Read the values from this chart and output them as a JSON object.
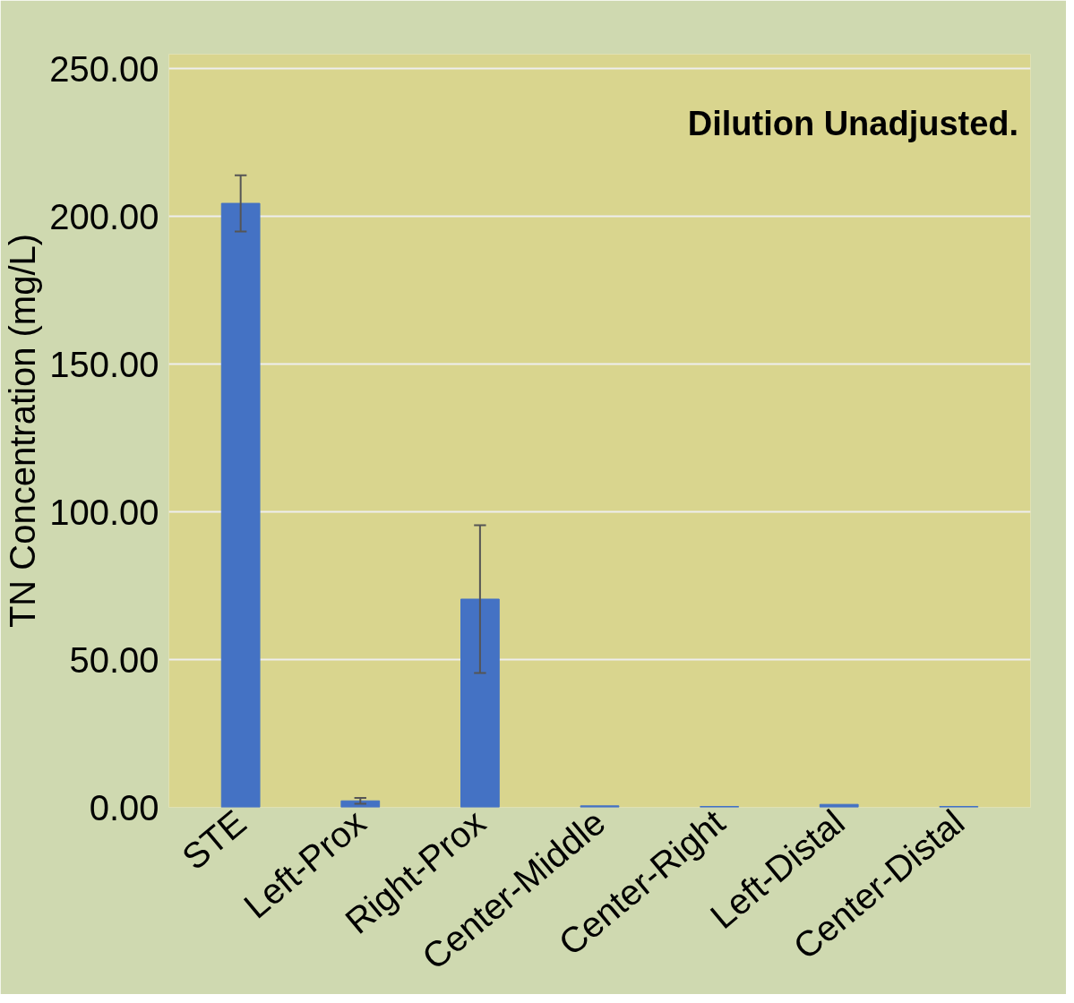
{
  "chart_data": {
    "type": "bar",
    "ylabel": "TN Concentration (mg/L)",
    "annotations": [
      "Dilution Unadjusted."
    ],
    "categories": [
      "STE",
      "Left-Prox",
      "Right-Prox",
      "Center-Middle",
      "Center-Right",
      "Left-Distal",
      "Center-Distal"
    ],
    "values": [
      204.5,
      2.2,
      70.5,
      0.5,
      0.3,
      1.0,
      0.3
    ],
    "errors": [
      9.5,
      1.0,
      25.0,
      null,
      null,
      null,
      null
    ],
    "color": "#4472c4",
    "ylim": [
      0,
      250
    ],
    "yticks": [
      {
        "value": 0,
        "label": "0.00"
      },
      {
        "value": 50,
        "label": "50.00"
      },
      {
        "value": 100,
        "label": "100.00"
      },
      {
        "value": 150,
        "label": "150.00"
      },
      {
        "value": 200,
        "label": "200.00"
      },
      {
        "value": 250,
        "label": "250.00"
      }
    ],
    "grid": "y"
  }
}
